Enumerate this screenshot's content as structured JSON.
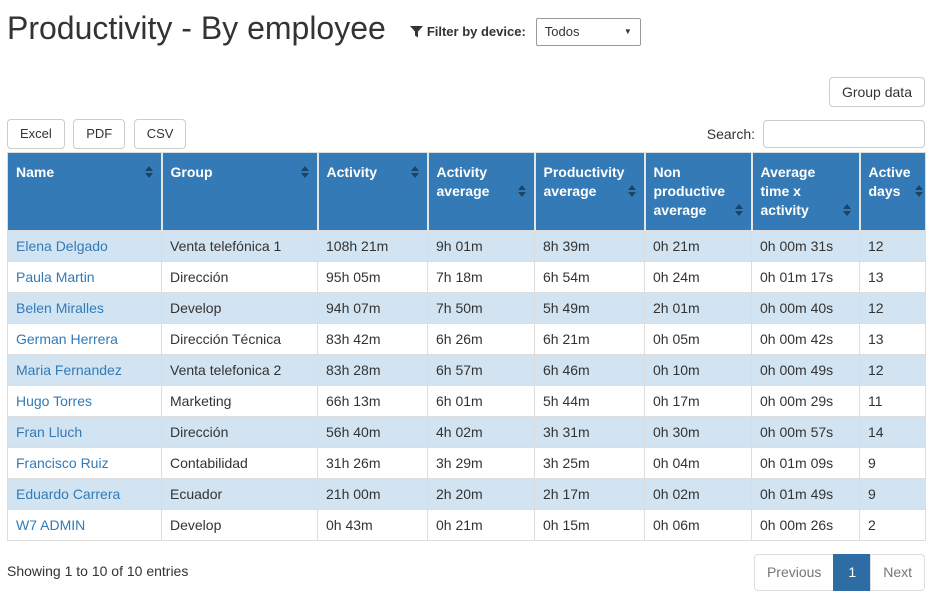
{
  "page": {
    "title": "Productivity - By employee"
  },
  "filter": {
    "label": "Filter by device:",
    "selected": "Todos"
  },
  "toolbar": {
    "group_data": "Group data",
    "export_buttons": [
      "Excel",
      "PDF",
      "CSV"
    ],
    "search_label": "Search:",
    "search_value": ""
  },
  "table": {
    "columns": [
      "Name",
      "Group",
      "Activity",
      "Activity average",
      "Productivity average",
      "Non productive average",
      "Average time x activity",
      "Active days"
    ],
    "rows": [
      [
        "Elena Delgado",
        "Venta telefónica 1",
        "108h 21m",
        "9h 01m",
        "8h 39m",
        "0h 21m",
        "0h 00m 31s",
        "12"
      ],
      [
        "Paula Martin",
        "Dirección",
        "95h 05m",
        "7h 18m",
        "6h 54m",
        "0h 24m",
        "0h 01m 17s",
        "13"
      ],
      [
        "Belen Miralles",
        "Develop",
        "94h 07m",
        "7h 50m",
        "5h 49m",
        "2h 01m",
        "0h 00m 40s",
        "12"
      ],
      [
        "German Herrera",
        "Dirección Técnica",
        "83h 42m",
        "6h 26m",
        "6h 21m",
        "0h 05m",
        "0h 00m 42s",
        "13"
      ],
      [
        "Maria Fernandez",
        "Venta telefonica 2",
        "83h 28m",
        "6h 57m",
        "6h 46m",
        "0h 10m",
        "0h 00m 49s",
        "12"
      ],
      [
        "Hugo Torres",
        "Marketing",
        "66h 13m",
        "6h 01m",
        "5h 44m",
        "0h 17m",
        "0h 00m 29s",
        "11"
      ],
      [
        "Fran Lluch",
        "Dirección",
        "56h 40m",
        "4h 02m",
        "3h 31m",
        "0h 30m",
        "0h 00m 57s",
        "14"
      ],
      [
        "Francisco Ruiz",
        "Contabilidad",
        "31h 26m",
        "3h 29m",
        "3h 25m",
        "0h 04m",
        "0h 01m 09s",
        "9"
      ],
      [
        "Eduardo Carrera",
        "Ecuador",
        "21h 00m",
        "2h 20m",
        "2h 17m",
        "0h 02m",
        "0h 01m 49s",
        "9"
      ],
      [
        "W7 ADMIN",
        "Develop",
        "0h 43m",
        "0h 21m",
        "0h 15m",
        "0h 06m",
        "0h 00m 26s",
        "2"
      ]
    ]
  },
  "footer": {
    "info": "Showing 1 to 10 of 10 entries",
    "pagination": {
      "previous": "Previous",
      "current": "1",
      "next": "Next"
    }
  },
  "colors": {
    "header_bg": "#337ab7",
    "stripe_bg": "#d2e4f2",
    "link": "#337ab7",
    "active_page_bg": "#2e6da4"
  }
}
